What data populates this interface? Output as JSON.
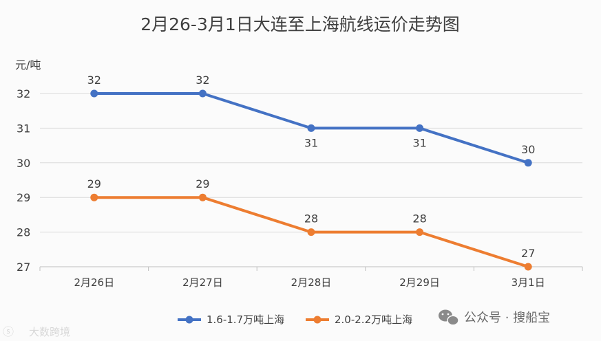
{
  "chart_data": {
    "type": "line",
    "title": "2月26-3月1日大连至上海航线运价走势图",
    "ylabel": "元/吨",
    "xlabel": "",
    "categories": [
      "2月26日",
      "2月27日",
      "2月28日",
      "2月29日",
      "3月1日"
    ],
    "yticks": [
      27,
      28,
      29,
      30,
      31,
      32
    ],
    "ylim": [
      27,
      32
    ],
    "grid": true,
    "legend_position": "bottom",
    "series": [
      {
        "name": "1.6-1.7万吨上海",
        "values": [
          32,
          32,
          31,
          31,
          30
        ],
        "color": "#4472c4",
        "label_pos": [
          "above",
          "above",
          "below",
          "below",
          "above"
        ]
      },
      {
        "name": "2.0-2.2万吨上海",
        "values": [
          29,
          29,
          28,
          28,
          27
        ],
        "color": "#ed7d31",
        "label_pos": [
          "above",
          "above",
          "above",
          "above",
          "above"
        ]
      }
    ]
  },
  "watermark": {
    "wechat": "公众号 · 搜船宝",
    "corner": "大数跨境"
  }
}
